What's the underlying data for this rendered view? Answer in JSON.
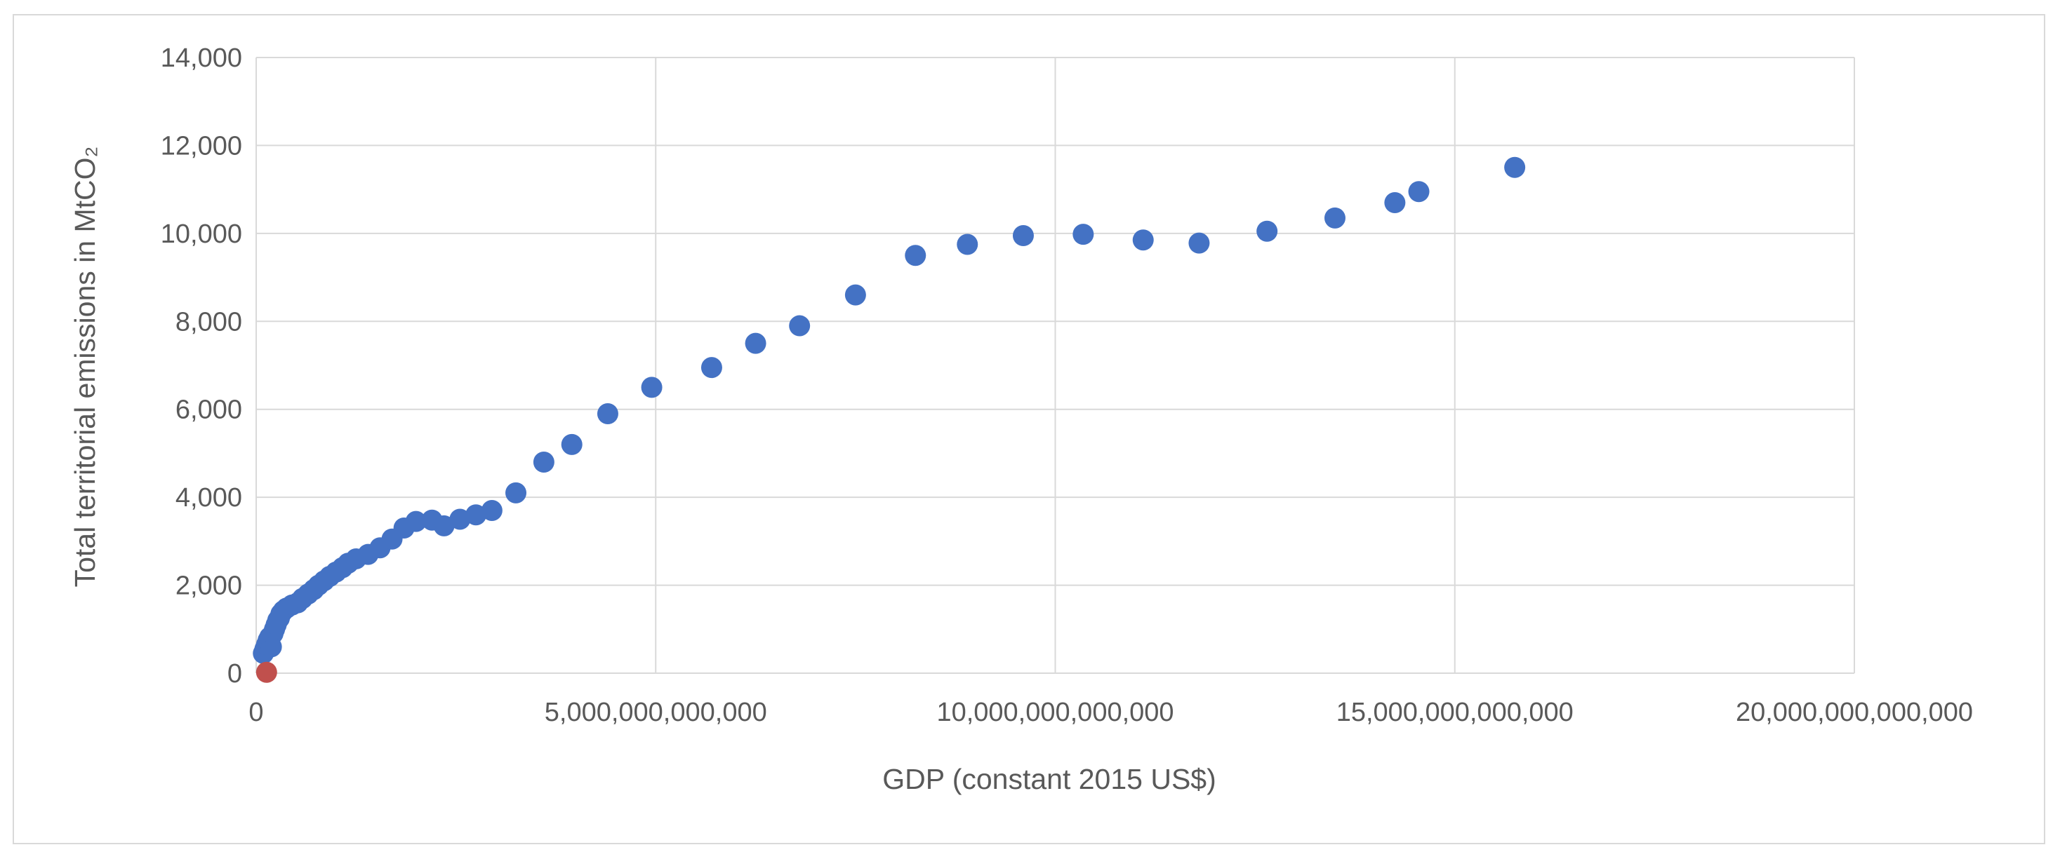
{
  "chart_data": {
    "type": "scatter",
    "title": "",
    "xlabel": "GDP (constant 2015 US$)",
    "ylabel": "Total territorial emissions in MtCO₂",
    "xlim": [
      0,
      20000000000000
    ],
    "ylim": [
      0,
      14000
    ],
    "x_ticks": [
      0,
      5000000000000,
      10000000000000,
      15000000000000,
      20000000000000
    ],
    "x_tick_labels": [
      "0",
      "5,000,000,000,000",
      "10,000,000,000,000",
      "15,000,000,000,000",
      "20,000,000,000,000"
    ],
    "y_ticks": [
      0,
      2000,
      4000,
      6000,
      8000,
      10000,
      12000,
      14000
    ],
    "y_tick_labels": [
      "0",
      "2,000",
      "4,000",
      "6,000",
      "8,000",
      "10,000",
      "12,000",
      "14,000"
    ],
    "grid": true,
    "legend": "none",
    "series": [
      {
        "color": "#4472c4",
        "points": [
          [
            90000000000,
            450
          ],
          [
            110000000000,
            550
          ],
          [
            130000000000,
            650
          ],
          [
            150000000000,
            750
          ],
          [
            170000000000,
            820
          ],
          [
            190000000000,
            600
          ],
          [
            210000000000,
            900
          ],
          [
            230000000000,
            1000
          ],
          [
            250000000000,
            1100
          ],
          [
            270000000000,
            1200
          ],
          [
            290000000000,
            1250
          ],
          [
            310000000000,
            1350
          ],
          [
            340000000000,
            1420
          ],
          [
            380000000000,
            1480
          ],
          [
            450000000000,
            1550
          ],
          [
            520000000000,
            1600
          ],
          [
            580000000000,
            1700
          ],
          [
            650000000000,
            1800
          ],
          [
            720000000000,
            1900
          ],
          [
            780000000000,
            2000
          ],
          [
            850000000000,
            2100
          ],
          [
            920000000000,
            2200
          ],
          [
            1000000000000,
            2300
          ],
          [
            1080000000000,
            2400
          ],
          [
            1150000000000,
            2500
          ],
          [
            1250000000000,
            2600
          ],
          [
            1400000000000,
            2700
          ],
          [
            1550000000000,
            2850
          ],
          [
            1700000000000,
            3050
          ],
          [
            1850000000000,
            3300
          ],
          [
            2000000000000,
            3450
          ],
          [
            2200000000000,
            3480
          ],
          [
            2350000000000,
            3350
          ],
          [
            2550000000000,
            3500
          ],
          [
            2750000000000,
            3600
          ],
          [
            2950000000000,
            3700
          ],
          [
            3250000000000,
            4100
          ],
          [
            3600000000000,
            4800
          ],
          [
            3950000000000,
            5200
          ],
          [
            4400000000000,
            5900
          ],
          [
            4950000000000,
            6500
          ],
          [
            5700000000000,
            6950
          ],
          [
            6250000000000,
            7500
          ],
          [
            6800000000000,
            7900
          ],
          [
            7500000000000,
            8600
          ],
          [
            8250000000000,
            9500
          ],
          [
            8900000000000,
            9750
          ],
          [
            9600000000000,
            9950
          ],
          [
            10350000000000,
            9980
          ],
          [
            11100000000000,
            9850
          ],
          [
            11800000000000,
            9780
          ],
          [
            12650000000000,
            10050
          ],
          [
            13500000000000,
            10350
          ],
          [
            14250000000000,
            10700
          ],
          [
            14550000000000,
            10950
          ],
          [
            15750000000000,
            11500
          ]
        ]
      },
      {
        "color": "#c0504d",
        "points": [
          [
            130000000000,
            20
          ]
        ]
      }
    ]
  }
}
